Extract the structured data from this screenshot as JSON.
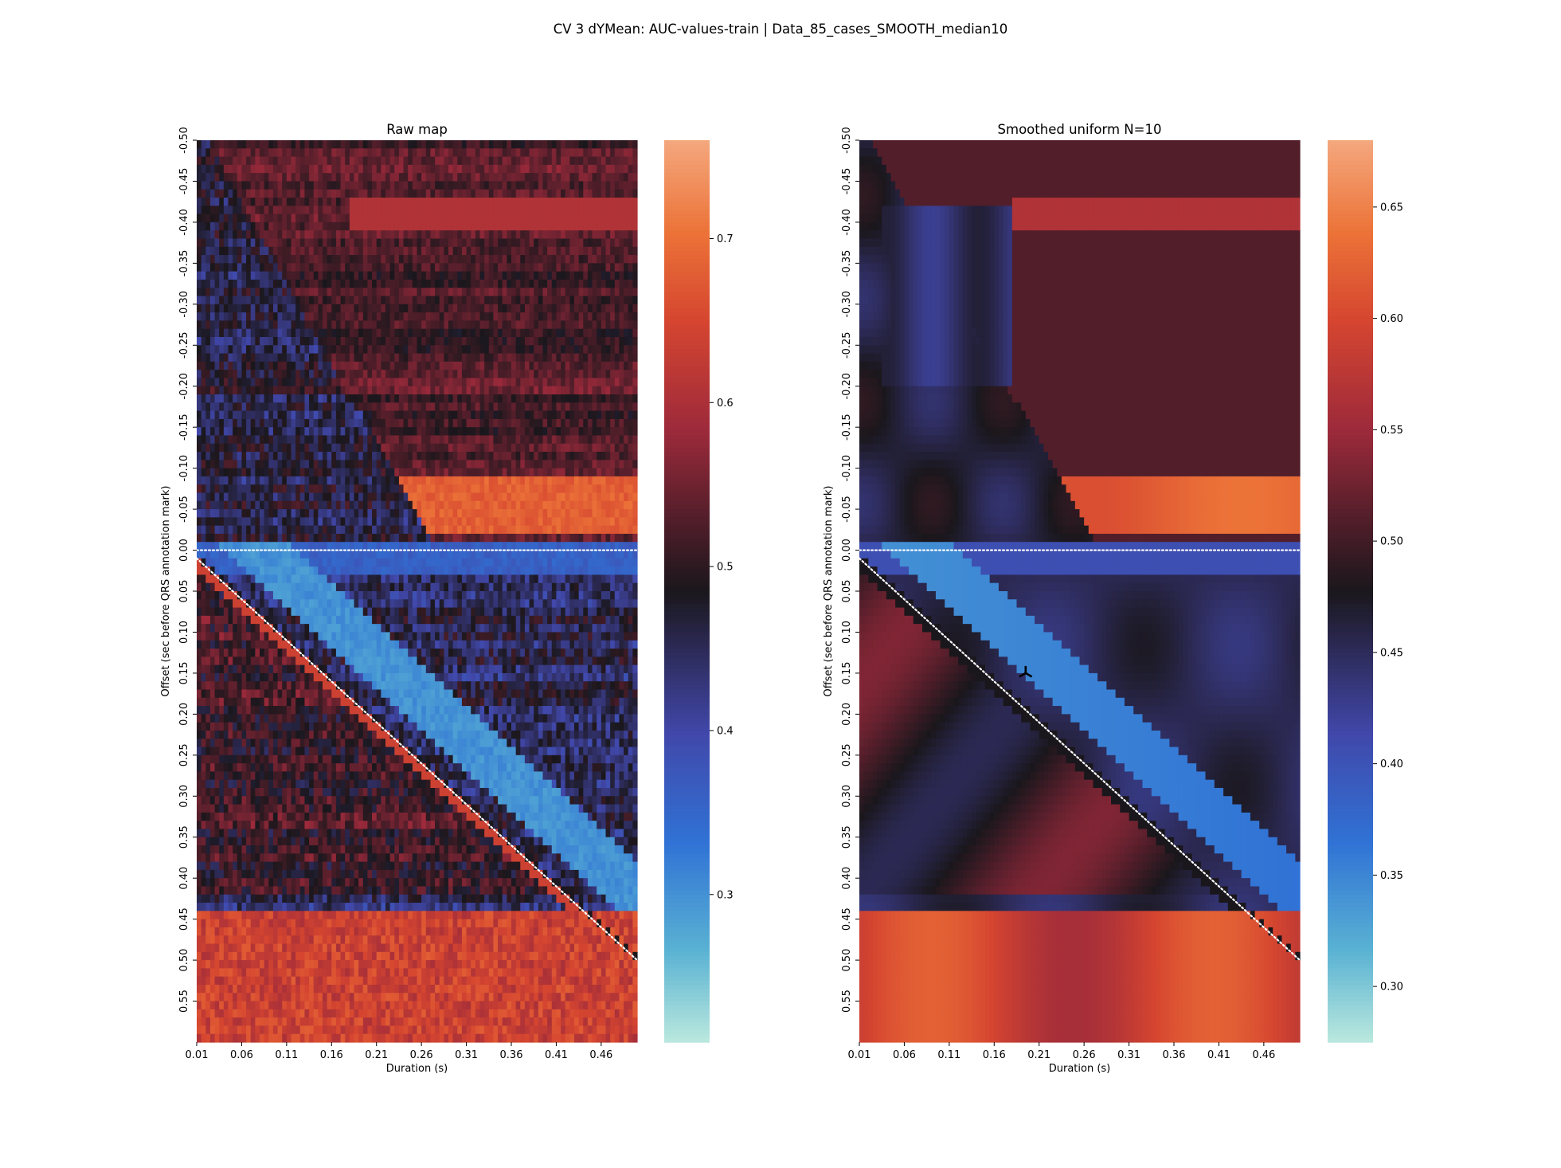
{
  "figure": {
    "title": "CV 3 dYMean: AUC-values-train | Data_85_cases_SMOOTH_median10"
  },
  "chart_data": [
    {
      "type": "heatmap",
      "title": "Raw map",
      "xlabel": "Duration (s)",
      "ylabel": "Offset (sec before QRS annotation mark)",
      "x_ticks": [
        "0.01",
        "0.06",
        "0.11",
        "0.16",
        "0.21",
        "0.26",
        "0.31",
        "0.36",
        "0.41",
        "0.46"
      ],
      "y_ticks": [
        "-0.50",
        "-0.45",
        "-0.40",
        "-0.35",
        "-0.30",
        "-0.25",
        "-0.20",
        "-0.15",
        "-0.10",
        "-0.05",
        "0.00",
        "0.05",
        "0.10",
        "0.15",
        "0.20",
        "0.25",
        "0.30",
        "0.35",
        "0.40",
        "0.45",
        "0.50",
        "0.55"
      ],
      "x_range": [
        0.01,
        0.5
      ],
      "y_range": [
        -0.5,
        0.6
      ],
      "colorbar": {
        "min": 0.21,
        "max": 0.76,
        "ticks": [
          "0.3",
          "0.4",
          "0.5",
          "0.6",
          "0.7"
        ],
        "tick_values": [
          0.3,
          0.4,
          0.5,
          0.6,
          0.7
        ]
      },
      "reference_lines": [
        {
          "kind": "horizontal",
          "offset": 0.0,
          "style": "dotted",
          "color": "#ffffff"
        },
        {
          "kind": "diagonal",
          "from": [
            0.01,
            0.01
          ],
          "to": [
            0.5,
            0.5
          ],
          "style": "dotted",
          "color": "#ffffff"
        }
      ],
      "smoothing": 0
    },
    {
      "type": "heatmap",
      "title": "Smoothed uniform N=10",
      "xlabel": "Duration (s)",
      "ylabel": "Offset (sec before QRS annotation mark)",
      "x_ticks": [
        "0.01",
        "0.06",
        "0.11",
        "0.16",
        "0.21",
        "0.26",
        "0.31",
        "0.36",
        "0.41",
        "0.46"
      ],
      "y_ticks": [
        "-0.50",
        "-0.45",
        "-0.40",
        "-0.35",
        "-0.30",
        "-0.25",
        "-0.20",
        "-0.15",
        "-0.10",
        "-0.05",
        "0.00",
        "0.05",
        "0.10",
        "0.15",
        "0.20",
        "0.25",
        "0.30",
        "0.35",
        "0.40",
        "0.45",
        "0.50",
        "0.55"
      ],
      "x_range": [
        0.01,
        0.5
      ],
      "y_range": [
        -0.5,
        0.6
      ],
      "colorbar": {
        "min": 0.275,
        "max": 0.68,
        "ticks": [
          "0.30",
          "0.35",
          "0.40",
          "0.45",
          "0.50",
          "0.55",
          "0.60",
          "0.65"
        ],
        "tick_values": [
          0.3,
          0.35,
          0.4,
          0.45,
          0.5,
          0.55,
          0.6,
          0.65
        ]
      },
      "reference_lines": [
        {
          "kind": "horizontal",
          "offset": 0.0,
          "style": "dotted",
          "color": "#ffffff"
        },
        {
          "kind": "diagonal",
          "from": [
            0.01,
            0.01
          ],
          "to": [
            0.5,
            0.5
          ],
          "style": "dotted",
          "color": "#ffffff"
        }
      ],
      "marker": {
        "shape": "tri-marker",
        "duration": 0.195,
        "offset": 0.15
      },
      "smoothing": 1
    }
  ]
}
